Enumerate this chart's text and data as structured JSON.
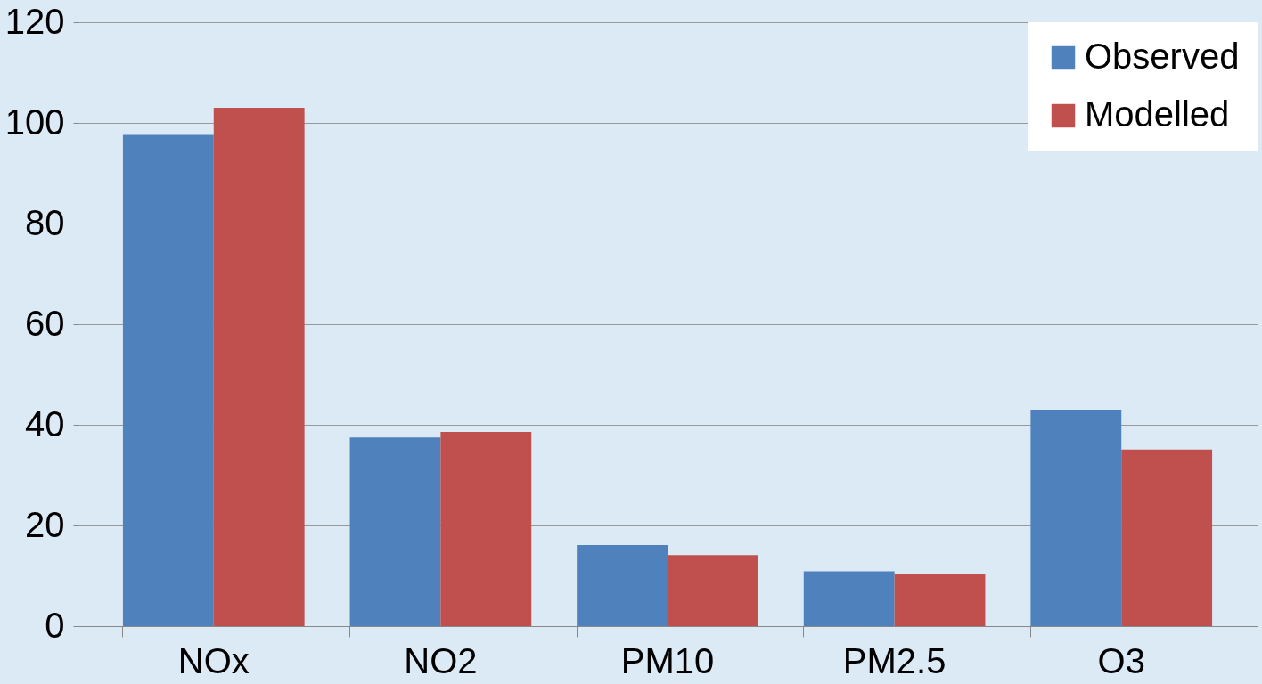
{
  "chart_data": {
    "type": "bar",
    "categories": [
      "NOx",
      "NO2",
      "PM10",
      "PM2.5",
      "O3"
    ],
    "series": [
      {
        "name": "Observed",
        "color": "#4f81bd",
        "values": [
          97.6,
          37.5,
          16.1,
          10.9,
          43.0
        ]
      },
      {
        "name": "Modelled",
        "color": "#c0504d",
        "values": [
          103.0,
          38.6,
          14.1,
          10.4,
          35.1
        ]
      }
    ],
    "ylim": [
      0,
      120
    ],
    "yticks": [
      0,
      20,
      40,
      60,
      80,
      100,
      120
    ],
    "grid": "y",
    "legend": "top right"
  }
}
